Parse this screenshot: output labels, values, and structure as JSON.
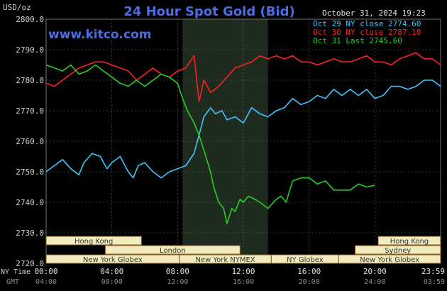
{
  "header": {
    "unit": "USD/oz",
    "title": "24 Hour Spot Gold (Bid)",
    "datetime": "October 31, 2024 19:23",
    "watermark": "www.kitco.com"
  },
  "legend": [
    {
      "label": "Oct 29 NY close 2774.60",
      "color": "#3fc7ff"
    },
    {
      "label": "Oct 30 NY close 2787.10",
      "color": "#ff2020"
    },
    {
      "label": "Oct 31 Last 2745.60",
      "color": "#25d025"
    }
  ],
  "axis": {
    "row1_label": "NY Time",
    "row2_label": "GMT",
    "x_ticks": [
      "00:00",
      "04:00",
      "08:00",
      "12:00",
      "16:00",
      "20:00",
      "23:59"
    ],
    "gmt_ticks": [
      "04:00",
      "08:00",
      "12:00",
      "16:00",
      "20:00",
      "24:00",
      "03:59"
    ]
  },
  "markets": {
    "row1": [
      "Hong Kong",
      "Hong Kong"
    ],
    "row2": [
      "London",
      "Sydney"
    ],
    "row3": [
      "New York Globex",
      "New York NYMEX",
      "NY Globex",
      "New York Globex"
    ]
  },
  "colors": {
    "background": "#000000",
    "grid": "#666666",
    "shade": "#1f2b1f",
    "title": "#4a6ee8",
    "market_box": "#f0ecc0",
    "market_border": "#8a5a20",
    "axis_text": "#d0d0d0"
  },
  "chart_data": {
    "type": "line",
    "title": "24 Hour Spot Gold (Bid)",
    "ylabel": "USD/oz",
    "ylim": [
      2720,
      2800
    ],
    "y_ticks": [
      2720,
      2730,
      2740,
      2750,
      2760,
      2770,
      2780,
      2790,
      2800
    ],
    "xlim": [
      0,
      24
    ],
    "x_tick_values": [
      0,
      4,
      8,
      12,
      16,
      20,
      24
    ],
    "shaded_range": [
      8.3,
      13.5
    ],
    "series": [
      {
        "name": "Oct 29 NY close 2774.60",
        "color": "#3fc7ff",
        "x": [
          0,
          0.5,
          1,
          1.5,
          2,
          2.3,
          2.8,
          3.3,
          3.7,
          4,
          4.5,
          5,
          5.3,
          5.6,
          6,
          6.5,
          7,
          7.5,
          8,
          8.5,
          9,
          9.3,
          9.6,
          10,
          10.3,
          10.7,
          11,
          11.5,
          12,
          12.5,
          13,
          13.5,
          14,
          14.5,
          15,
          15.5,
          16,
          16.5,
          17,
          17.5,
          18,
          18.5,
          19,
          19.5,
          20,
          20.5,
          21,
          21.5,
          22,
          22.5,
          23,
          23.5,
          24
        ],
        "y": [
          2750,
          2752,
          2754,
          2751,
          2749,
          2753,
          2756,
          2755,
          2751,
          2753,
          2755,
          2750,
          2748,
          2752,
          2753,
          2750,
          2748,
          2750,
          2751,
          2752,
          2756,
          2762,
          2768,
          2771,
          2769,
          2770,
          2767,
          2768,
          2766,
          2771,
          2769,
          2768,
          2770,
          2771,
          2774,
          2772,
          2773,
          2775,
          2774,
          2777,
          2775,
          2777,
          2775,
          2777,
          2774,
          2775,
          2778,
          2778,
          2777,
          2778,
          2780,
          2780,
          2778
        ]
      },
      {
        "name": "Oct 30 NY close 2787.10",
        "color": "#ff2020",
        "x": [
          0,
          0.5,
          1,
          1.5,
          2,
          2.5,
          3,
          3.5,
          4,
          4.5,
          5,
          5.5,
          6,
          6.5,
          7,
          7.5,
          8,
          8.5,
          9,
          9.3,
          9.6,
          10,
          10.5,
          11,
          11.5,
          12,
          12.5,
          13,
          13.5,
          14,
          14.5,
          15,
          15.5,
          16,
          16.5,
          17,
          17.5,
          18,
          18.5,
          19,
          19.5,
          20,
          20.5,
          21,
          21.5,
          22,
          22.5,
          23,
          23.5,
          24
        ],
        "y": [
          2779,
          2778,
          2780,
          2782,
          2784,
          2785,
          2786,
          2786,
          2785,
          2784,
          2783,
          2780,
          2782,
          2784,
          2782,
          2781,
          2783,
          2784,
          2788,
          2773,
          2780,
          2776,
          2778,
          2781,
          2784,
          2785,
          2786,
          2788,
          2787,
          2788,
          2787,
          2788,
          2786,
          2786,
          2785,
          2786,
          2787,
          2786,
          2786,
          2787,
          2788,
          2786,
          2786,
          2785,
          2787,
          2788,
          2789,
          2787,
          2787,
          2785
        ]
      },
      {
        "name": "Oct 31 Last 2745.60",
        "color": "#25d025",
        "x": [
          0,
          0.5,
          1,
          1.5,
          2,
          2.5,
          3,
          3.5,
          4,
          4.5,
          5,
          5.5,
          6,
          6.5,
          7,
          7.5,
          8,
          8.3,
          8.6,
          9,
          9.3,
          9.6,
          10,
          10.2,
          10.5,
          10.8,
          11,
          11.3,
          11.5,
          11.8,
          12,
          12.3,
          12.7,
          13,
          13.5,
          14,
          14.3,
          14.6,
          15,
          15.5,
          16,
          16.5,
          17,
          17.5,
          18,
          18.5,
          19,
          19.5,
          20
        ],
        "y": [
          2785,
          2784,
          2783,
          2785,
          2782,
          2783,
          2785,
          2783,
          2781,
          2779,
          2778,
          2780,
          2778,
          2780,
          2782,
          2781,
          2779,
          2774,
          2770,
          2766,
          2762,
          2757,
          2750,
          2745,
          2740,
          2738,
          2733,
          2738,
          2737,
          2741,
          2740,
          2742,
          2741,
          2740,
          2738,
          2741,
          2742,
          2740,
          2747,
          2748,
          2748,
          2746,
          2747,
          2744,
          2744,
          2744,
          2746,
          2745,
          2745.6
        ]
      }
    ]
  }
}
